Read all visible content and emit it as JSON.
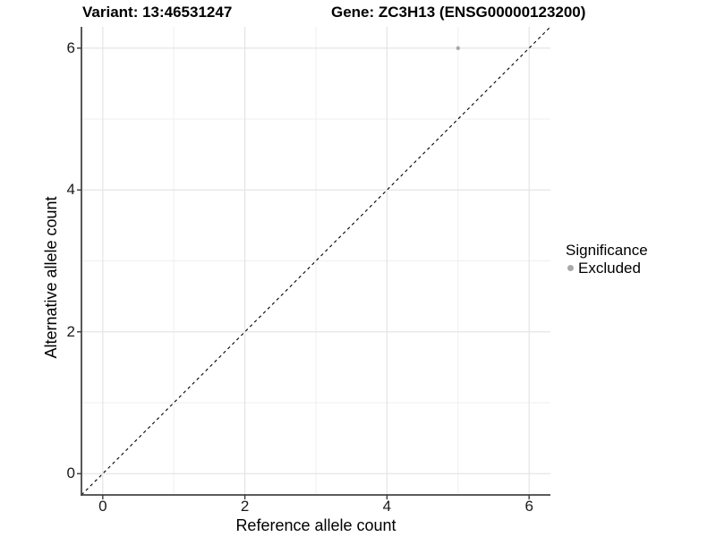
{
  "chart_data": {
    "type": "scatter",
    "titles": {
      "variant": "Variant: 13:46531247",
      "gene": "Gene: ZC3H13 (ENSG00000123200)"
    },
    "xlabel": "Reference allele count",
    "ylabel": "Alternative allele count",
    "xlim": [
      -0.3,
      6.3
    ],
    "ylim": [
      -0.3,
      6.3
    ],
    "x_major_ticks": [
      0,
      2,
      4,
      6
    ],
    "y_major_ticks": [
      0,
      2,
      4,
      6
    ],
    "x_minor_ticks": [
      1,
      3,
      5
    ],
    "y_minor_ticks": [
      1,
      3,
      5
    ],
    "grid": "major and minor, light gray on white",
    "points": [
      {
        "x": 5,
        "y": 6,
        "series": "Excluded"
      }
    ],
    "reference_line": {
      "kind": "identity y=x",
      "style": "dashed",
      "x1": -0.3,
      "y1": -0.3,
      "x2": 6.3,
      "y2": 6.3
    },
    "legend": {
      "title": "Significance",
      "position": "right",
      "items": [
        {
          "label": "Excluded",
          "color": "#a9a9a9"
        }
      ]
    },
    "colors": {
      "point": "#a9a9a9",
      "grid_major": "#e4e4e4",
      "grid_minor": "#efefef",
      "axis_line": "#454545",
      "tick_mark": "#3a3a3a",
      "dashed_line": "#000000",
      "text": "#000000"
    }
  }
}
